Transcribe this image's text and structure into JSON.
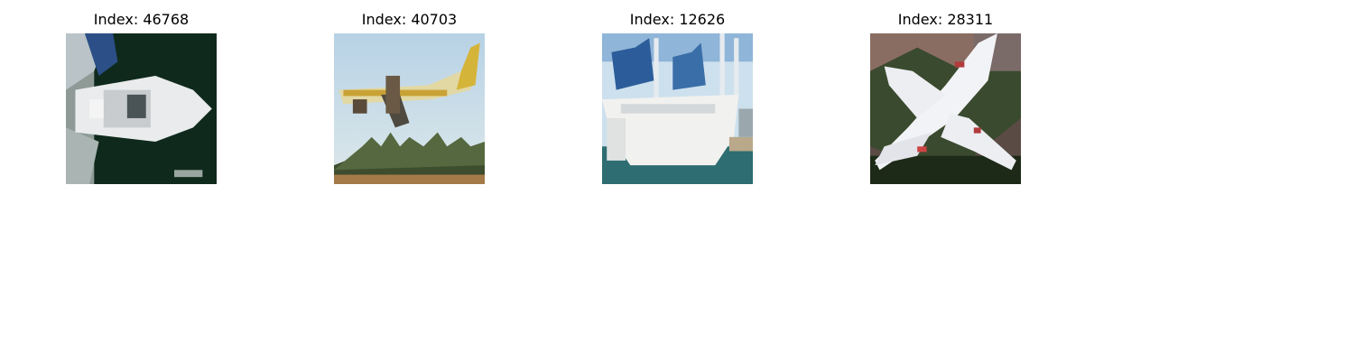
{
  "panels": [
    {
      "title": "Index: 46768",
      "subject": "boat"
    },
    {
      "title": "Index: 40703",
      "subject": "airplane"
    },
    {
      "title": "Index: 12626",
      "subject": "sailboat"
    },
    {
      "title": "Index: 28311",
      "subject": "jet"
    }
  ],
  "colors": {
    "background": "#ffffff",
    "title": "#000000"
  }
}
